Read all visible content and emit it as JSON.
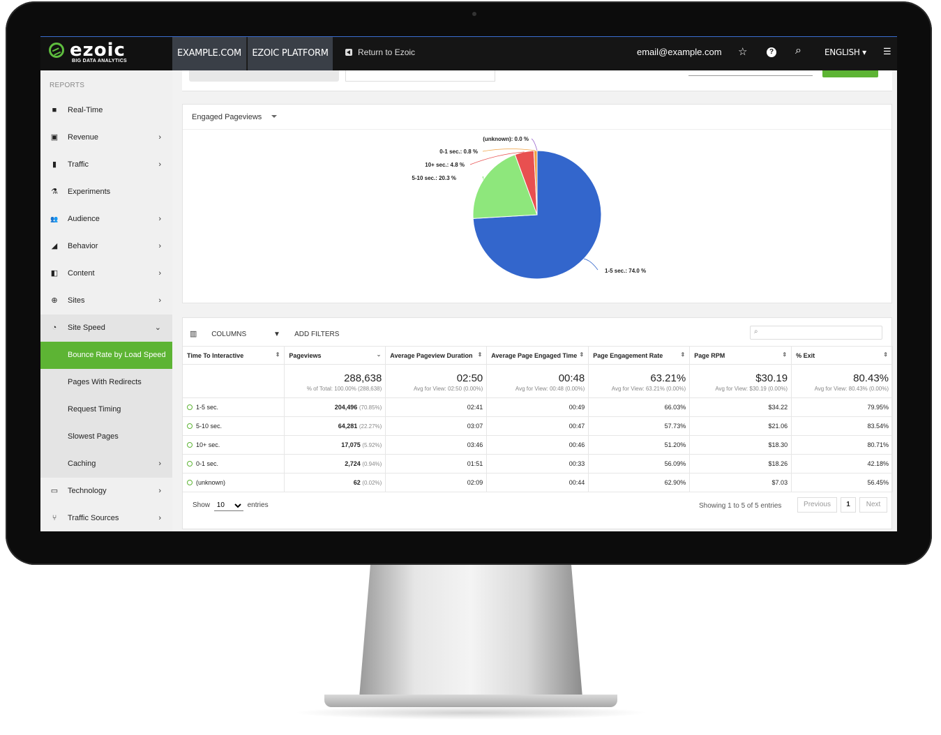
{
  "topbar": {
    "logo_word": "ezoic",
    "logo_sub": "BIG DATA ANALYTICS",
    "tab_site": "EXAMPLE.COM",
    "tab_platform": "EZOIC PLATFORM",
    "return_label": "Return to Ezoic",
    "email": "email@example.com",
    "language": "ENGLISH ▾",
    "star": "☆",
    "help": "?",
    "search": "⌕",
    "menu": "☰"
  },
  "sidebar": {
    "header": "REPORTS",
    "items": [
      {
        "label": "Real-Time",
        "icon": "■",
        "chev": ""
      },
      {
        "label": "Revenue",
        "icon": "▣",
        "chev": "›"
      },
      {
        "label": "Traffic",
        "icon": "▮",
        "chev": "›"
      },
      {
        "label": "Experiments",
        "icon": "⚗",
        "chev": ""
      },
      {
        "label": "Audience",
        "icon": "👥",
        "chev": "›"
      },
      {
        "label": "Behavior",
        "icon": "◢",
        "chev": "›"
      },
      {
        "label": "Content",
        "icon": "◧",
        "chev": "›"
      },
      {
        "label": "Sites",
        "icon": "⊕",
        "chev": "›"
      },
      {
        "label": "Site Speed",
        "icon": "◔",
        "chev": "⌄"
      },
      {
        "label": "Bounce Rate by Load Speed"
      },
      {
        "label": "Pages With Redirects"
      },
      {
        "label": "Request Timing"
      },
      {
        "label": "Slowest Pages"
      },
      {
        "label": "Caching",
        "chev": "›"
      },
      {
        "label": "Technology",
        "icon": "▭",
        "chev": "›"
      },
      {
        "label": "Traffic Sources",
        "icon": "⑂",
        "chev": "›"
      }
    ]
  },
  "chart_card": {
    "metric_label": "Engaged Pageviews"
  },
  "chart_data": {
    "type": "pie",
    "title": "",
    "slices": [
      {
        "label": "1-5 sec.",
        "value": 74.0,
        "display": "1-5 sec.: 74.0 %",
        "color": "#3366cc"
      },
      {
        "label": "5-10 sec.",
        "value": 20.3,
        "display": "5-10 sec.: 20.3 %",
        "color": "#8ee77c"
      },
      {
        "label": "10+ sec.",
        "value": 4.8,
        "display": "10+ sec.: 4.8 %",
        "color": "#e85050"
      },
      {
        "label": "0-1 sec.",
        "value": 0.8,
        "display": "0-1 sec.: 0.8 %",
        "color": "#f0a040"
      },
      {
        "label": "(unknown)",
        "value": 0.0,
        "display": "(unknown): 0.0 %",
        "color": "#9966cc"
      }
    ],
    "legend": "none"
  },
  "table": {
    "tool_columns": "COLUMNS",
    "tool_filters": "ADD FILTERS",
    "search_icon": "⌕",
    "headers": [
      "Time To Interactive",
      "Pageviews",
      "Average Pageview Duration",
      "Average Page Engaged Time",
      "Page Engagement Rate",
      "Page RPM",
      "% Exit"
    ],
    "totals": [
      {
        "big": "",
        "small": ""
      },
      {
        "big": "288,638",
        "small": "% of Total: 100.00% (288,638)"
      },
      {
        "big": "02:50",
        "small": "Avg for View: 02:50 (0.00%)"
      },
      {
        "big": "00:48",
        "small": "Avg for View: 00:48 (0.00%)"
      },
      {
        "big": "63.21%",
        "small": "Avg for View: 63.21% (0.00%)"
      },
      {
        "big": "$30.19",
        "small": "Avg for View: $30.19 (0.00%)"
      },
      {
        "big": "80.43%",
        "small": "Avg for View: 80.43% (0.00%)"
      }
    ],
    "rows": [
      {
        "name": "1-5 sec.",
        "pv": "204,496",
        "pct": "(70.85%)",
        "dur": "02:41",
        "eng": "00:49",
        "rate": "66.03%",
        "rpm": "$34.22",
        "exit": "79.95%"
      },
      {
        "name": "5-10 sec.",
        "pv": "64,281",
        "pct": "(22.27%)",
        "dur": "03:07",
        "eng": "00:47",
        "rate": "57.73%",
        "rpm": "$21.06",
        "exit": "83.54%"
      },
      {
        "name": "10+ sec.",
        "pv": "17,075",
        "pct": "(5.92%)",
        "dur": "03:46",
        "eng": "00:46",
        "rate": "51.20%",
        "rpm": "$18.30",
        "exit": "80.71%"
      },
      {
        "name": "0-1 sec.",
        "pv": "2,724",
        "pct": "(0.94%)",
        "dur": "01:51",
        "eng": "00:33",
        "rate": "56.09%",
        "rpm": "$18.26",
        "exit": "42.18%"
      },
      {
        "name": "(unknown)",
        "pv": "62",
        "pct": "(0.02%)",
        "dur": "02:09",
        "eng": "00:44",
        "rate": "62.90%",
        "rpm": "$7.03",
        "exit": "56.45%"
      }
    ],
    "footer": {
      "show": "Show",
      "entries_value": "10",
      "entries": "entries",
      "showing": "Showing 1 to 5 of 5 entries",
      "previous": "Previous",
      "page": "1",
      "next": "Next"
    }
  }
}
